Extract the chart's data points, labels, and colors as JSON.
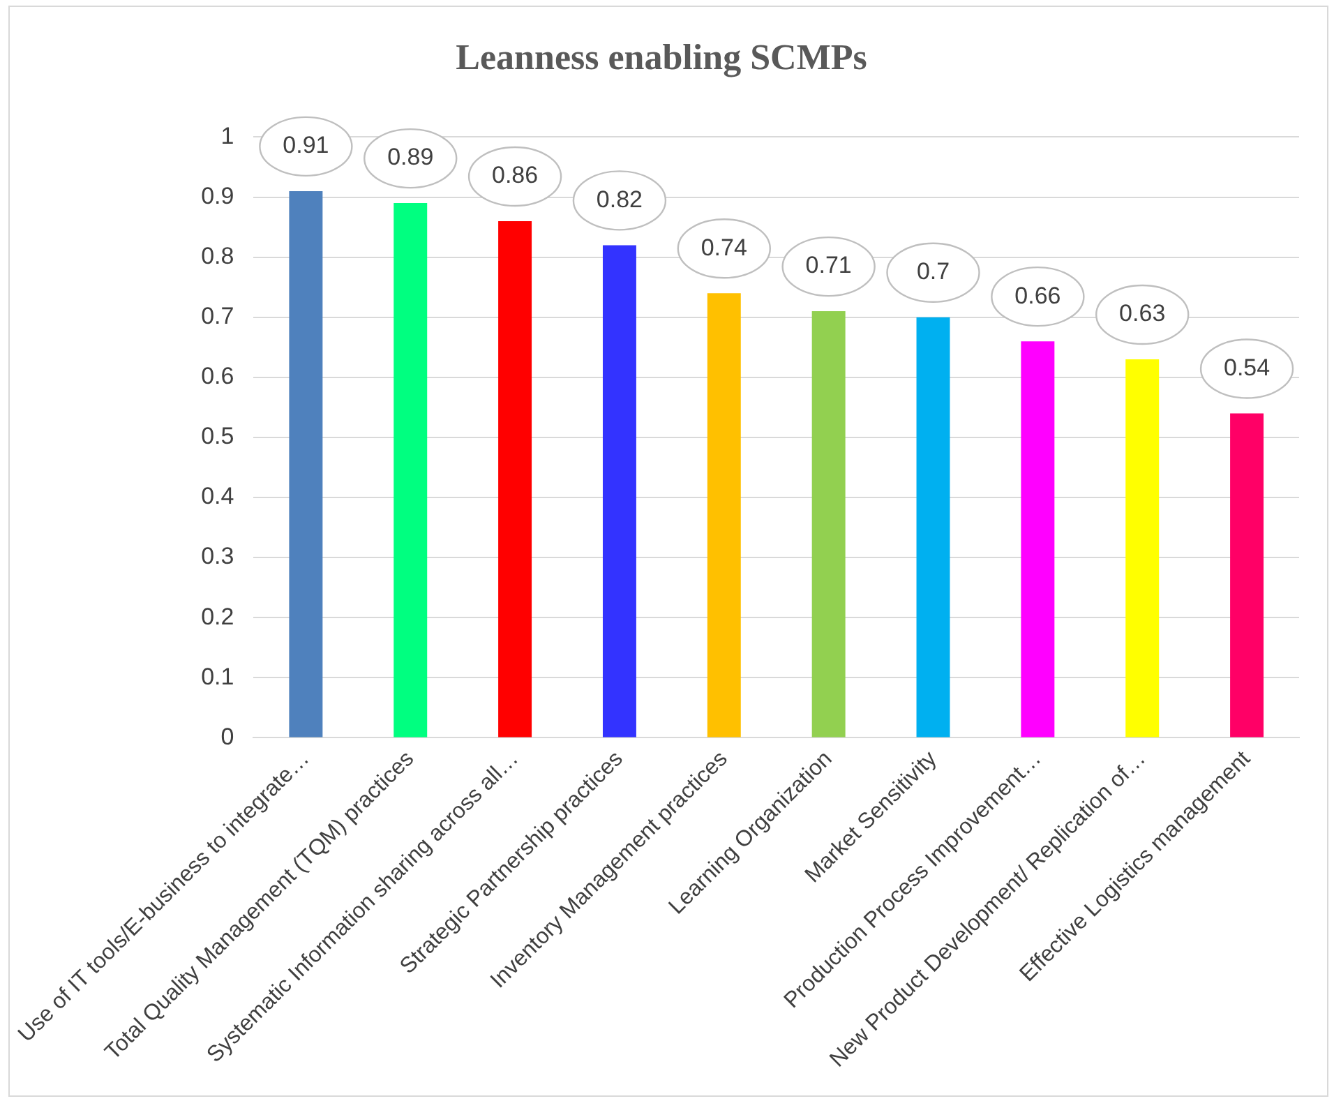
{
  "chart_data": {
    "type": "bar",
    "title": "Leanness enabling SCMPs",
    "categories": [
      "Use of IT tools/E-business to integrate…",
      "Total Quality Management (TQM) practices",
      "Systematic Information sharing across all…",
      "Strategic Partnership practices",
      "Inventory Management practices",
      "Learning Organization",
      "Market Sensitivity",
      "Production Process Improvement…",
      "New Product Development/ Replication of…",
      "Effective Logistics management"
    ],
    "values": [
      0.91,
      0.89,
      0.86,
      0.82,
      0.74,
      0.71,
      0.7,
      0.66,
      0.63,
      0.54
    ],
    "colors": [
      "#4f81bd",
      "#00ff80",
      "#ff0000",
      "#3333ff",
      "#ffc000",
      "#92d050",
      "#00b0f0",
      "#ff00ff",
      "#ffff00",
      "#ff0066"
    ],
    "ylim": [
      0,
      1
    ],
    "yticks": [
      0,
      0.1,
      0.2,
      0.3,
      0.4,
      0.5,
      0.6,
      0.7,
      0.8,
      0.9,
      1
    ],
    "grid": "y",
    "data_labels": true
  }
}
